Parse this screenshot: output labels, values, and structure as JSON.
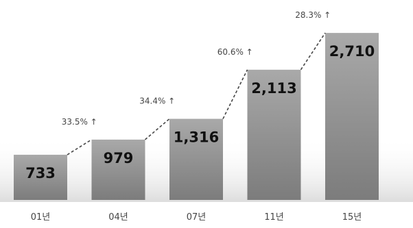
{
  "chart_data": {
    "type": "bar",
    "categories": [
      "01년",
      "04년",
      "07년",
      "11년",
      "15년"
    ],
    "values": [
      733,
      979,
      1316,
      2113,
      2710
    ],
    "value_labels": [
      "733",
      "979",
      "1,316",
      "2,113",
      "2,710"
    ],
    "growth_labels": [
      "33.5% ↑",
      "34.4% ↑",
      "60.6% ↑",
      "28.3% ↑"
    ],
    "ylim": [
      0,
      2800
    ],
    "grid": false,
    "legend": "none",
    "colors": {
      "bar_top": "#a9a9a9",
      "bar_bottom": "#7c7c7c",
      "value_text": "#111111",
      "label_text": "#444444",
      "connector": "#444444"
    }
  }
}
